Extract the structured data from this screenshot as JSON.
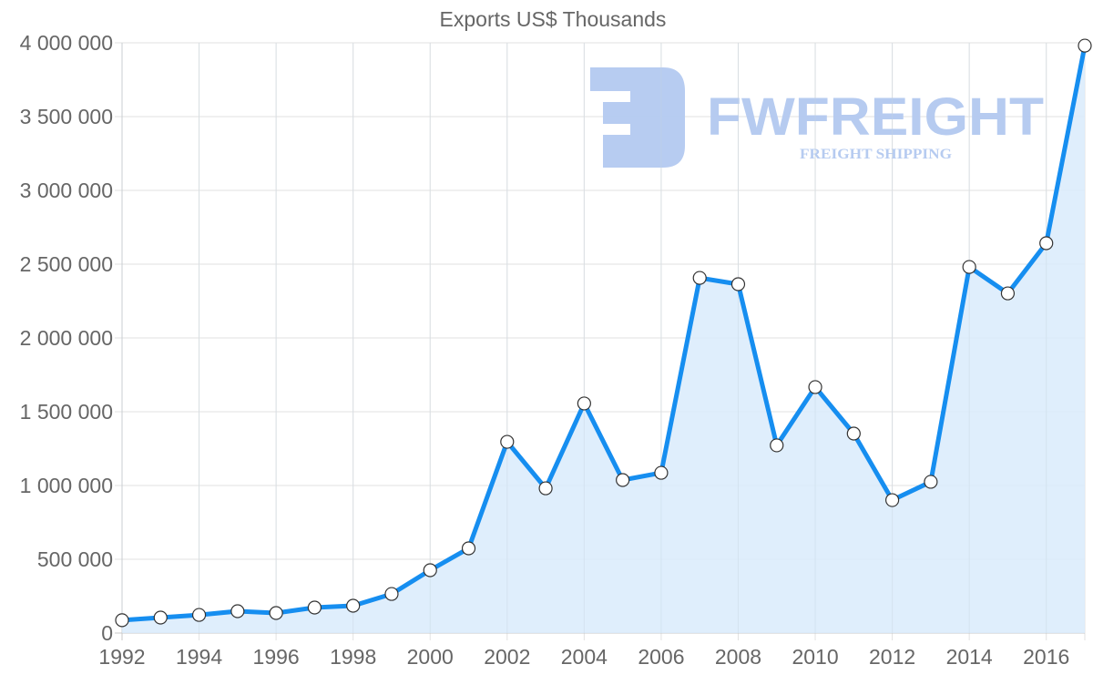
{
  "chart": {
    "title": "Exports US$ Thousands",
    "watermark": {
      "brand": "FWFREIGHT",
      "tagline": "FREIGHT SHIPPING",
      "color": "#b3c9f0"
    },
    "colors": {
      "line": "#168ef0",
      "fill": "#d9ebfc",
      "grid": "#e2e2e2",
      "axis_text": "#666666",
      "point_fill": "#ffffff",
      "point_stroke": "#333333"
    }
  },
  "chart_data": {
    "type": "area",
    "title": "Exports US$ Thousands",
    "xlabel": "",
    "ylabel": "",
    "ylim": [
      0,
      4000000
    ],
    "y_ticks": [
      0,
      500000,
      1000000,
      1500000,
      2000000,
      2500000,
      3000000,
      3500000,
      4000000
    ],
    "y_tick_labels": [
      "0",
      "500 000",
      "1 000 000",
      "1 500 000",
      "2 000 000",
      "2 500 000",
      "3 000 000",
      "3 500 000",
      "4 000 000"
    ],
    "x_tick_labels": [
      "1992",
      "1994",
      "1996",
      "1998",
      "2000",
      "2002",
      "2004",
      "2006",
      "2008",
      "2010",
      "2012",
      "2014",
      "2016"
    ],
    "grid": true,
    "legend": null,
    "x": [
      1992,
      1993,
      1994,
      1995,
      1996,
      1997,
      1998,
      1999,
      2000,
      2001,
      2002,
      2003,
      2004,
      2005,
      2006,
      2007,
      2008,
      2009,
      2010,
      2011,
      2012,
      2013,
      2014,
      2015,
      2016,
      2017
    ],
    "series": [
      {
        "name": "Exports US$ Thousands",
        "values": [
          87000,
          105000,
          123000,
          148000,
          136000,
          173000,
          185000,
          265000,
          426000,
          574000,
          1296000,
          981000,
          1556000,
          1037000,
          1086000,
          2407000,
          2364000,
          1272000,
          1667000,
          1352000,
          901000,
          1025000,
          2481000,
          2302000,
          2642000,
          3981000
        ]
      }
    ]
  }
}
